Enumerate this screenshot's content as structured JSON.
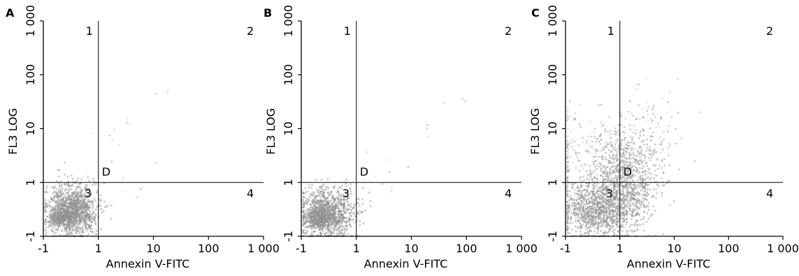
{
  "chart_data": [
    {
      "type": "scatter",
      "panel": "A",
      "xlabel": "Annexin V-FITC",
      "ylabel": "FL3 LOG",
      "x_ticks": [
        "-1",
        "1",
        "10",
        "100",
        "1 000"
      ],
      "y_ticks": [
        "-1",
        "1",
        "10",
        "100",
        "1 000"
      ],
      "scale": "log",
      "gate": {
        "x": "1",
        "y": "1",
        "label": "D"
      },
      "quadrants": [
        "1",
        "2",
        "3",
        "4"
      ],
      "populations": [
        {
          "x_center": 0.5,
          "y_center": 0.5,
          "x_spread": 0.22,
          "y_spread": 0.22,
          "count": 1300,
          "darkness": 0.9
        },
        {
          "x_center": 0.3,
          "y_center": 0.35,
          "x_spread": 0.1,
          "y_spread": 0.08,
          "count": 250,
          "darkness": 0.9
        },
        {
          "x_center": 2.0,
          "y_center": 1.6,
          "x_spread": 0.3,
          "y_spread": 0.3,
          "count": 10,
          "darkness": 0.3
        },
        {
          "x_center": 3.2,
          "y_center": 10.0,
          "x_spread": 0.15,
          "y_spread": 0.15,
          "count": 6,
          "darkness": 0.3
        },
        {
          "x_center": 12.0,
          "y_center": 50.0,
          "x_spread": 0.1,
          "y_spread": 0.1,
          "count": 3,
          "darkness": 0.3
        }
      ]
    },
    {
      "type": "scatter",
      "panel": "B",
      "xlabel": "Annexin V-FITC",
      "ylabel": "FL3 LOG",
      "x_ticks": [
        "-1",
        "1",
        "10",
        "100",
        "1 000"
      ],
      "y_ticks": [
        "-1",
        "1",
        "10",
        "100",
        "1 000"
      ],
      "scale": "log",
      "gate": {
        "x": "1",
        "y": "1",
        "label": "D"
      },
      "quadrants": [
        "1",
        "2",
        "3",
        "4"
      ],
      "populations": [
        {
          "x_center": 0.45,
          "y_center": 0.45,
          "x_spread": 0.24,
          "y_spread": 0.22,
          "count": 1200,
          "darkness": 0.9
        },
        {
          "x_center": 0.3,
          "y_center": 0.33,
          "x_spread": 0.1,
          "y_spread": 0.08,
          "count": 220,
          "darkness": 0.9
        },
        {
          "x_center": 1.9,
          "y_center": 1.5,
          "x_spread": 0.3,
          "y_spread": 0.3,
          "count": 10,
          "darkness": 0.3
        },
        {
          "x_center": 20.0,
          "y_center": 10.0,
          "x_spread": 0.1,
          "y_spread": 0.1,
          "count": 3,
          "darkness": 0.3
        },
        {
          "x_center": 55.0,
          "y_center": 35.0,
          "x_spread": 0.1,
          "y_spread": 0.1,
          "count": 3,
          "darkness": 0.3
        }
      ]
    },
    {
      "type": "scatter",
      "panel": "C",
      "xlabel": "Annexin V-FITC",
      "ylabel": "FL3 LOG",
      "x_ticks": [
        "-1",
        "1",
        "10",
        "100",
        "1 000"
      ],
      "y_ticks": [
        "-1",
        "1",
        "10",
        "100",
        "1 000"
      ],
      "scale": "log",
      "gate": {
        "x": "1",
        "y": "1",
        "label": "D"
      },
      "quadrants": [
        "1",
        "2",
        "3",
        "4"
      ],
      "populations": [
        {
          "x_center": 0.55,
          "y_center": 0.5,
          "x_spread": 0.3,
          "y_spread": 0.27,
          "count": 900,
          "darkness": 0.85
        },
        {
          "x_center": 1.2,
          "y_center": 1.0,
          "x_spread": 0.3,
          "y_spread": 0.45,
          "count": 1000,
          "darkness": 0.8
        },
        {
          "x_center": 0.4,
          "y_center": 3.0,
          "x_spread": 0.45,
          "y_spread": 0.45,
          "count": 220,
          "darkness": 0.4
        },
        {
          "x_center": 2.5,
          "y_center": 6.0,
          "x_spread": 0.35,
          "y_spread": 0.4,
          "count": 140,
          "darkness": 0.4
        }
      ]
    }
  ]
}
